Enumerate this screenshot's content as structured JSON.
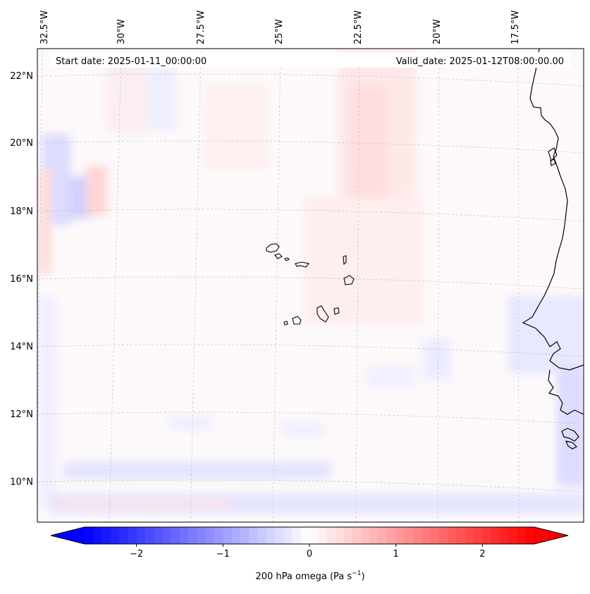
{
  "map": {
    "start_date_label": "Start date: 2025-01-11_00:00:00",
    "valid_date_label": "Valid_date: 2025-01-12T08:00:00.00",
    "lon_labels": [
      "32.5°W",
      "30°W",
      "27.5°W",
      "25°W",
      "22.5°W",
      "20°W",
      "17.5°W"
    ],
    "lat_labels": [
      "22°N",
      "20°N",
      "18°N",
      "16°N",
      "14°N",
      "12°N",
      "10°N"
    ],
    "colors": {
      "frame": "#000000",
      "coastline": "#000000",
      "grid": "#b8b8b8",
      "positive": "#ff0000",
      "negative": "#0000ff",
      "neutral": "#ffffff"
    }
  },
  "colorbar": {
    "label": "200 hPa omega (Pa s",
    "label_exponent": "−1",
    "label_suffix": ")",
    "range": [
      -2.6,
      2.6
    ],
    "ticks": [
      {
        "value": -2,
        "label": "−2"
      },
      {
        "value": -1,
        "label": "−1"
      },
      {
        "value": 0,
        "label": "0"
      },
      {
        "value": 1,
        "label": "1"
      },
      {
        "value": 2,
        "label": "2"
      }
    ]
  }
}
